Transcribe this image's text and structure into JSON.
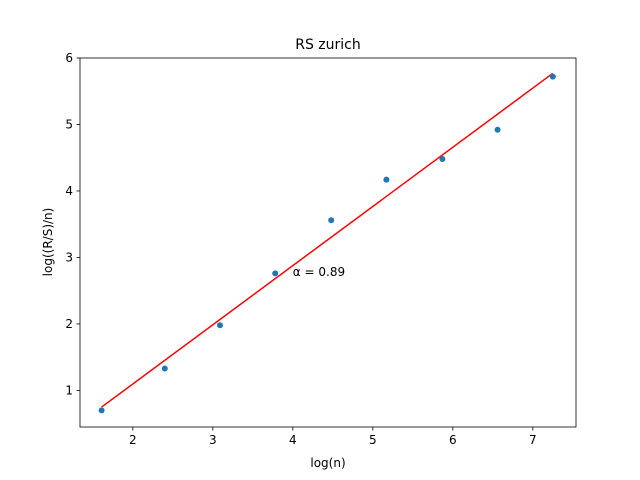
{
  "chart_data": {
    "type": "scatter",
    "title": "RS zurich",
    "xlabel": "log(n)",
    "ylabel": "log((R/S)/n)",
    "xlim": [
      1.34,
      7.54
    ],
    "ylim": [
      0.45,
      6.0
    ],
    "xticks": [
      2,
      3,
      4,
      5,
      6,
      7
    ],
    "yticks": [
      1,
      2,
      3,
      4,
      5,
      6
    ],
    "grid": false,
    "series": [
      {
        "type": "scatter",
        "color": "#1f77b4",
        "x": [
          1.61,
          2.4,
          3.09,
          3.78,
          4.48,
          5.17,
          5.87,
          6.56,
          7.25
        ],
        "y": [
          0.7,
          1.33,
          1.98,
          2.76,
          3.56,
          4.17,
          4.48,
          4.92,
          5.72
        ]
      },
      {
        "type": "line",
        "color": "#ff0000",
        "x": [
          1.61,
          7.25
        ],
        "y": [
          0.75,
          5.77
        ]
      }
    ],
    "annotations": [
      {
        "text": "α = 0.89",
        "x": 4.0,
        "y": 2.78
      }
    ]
  }
}
